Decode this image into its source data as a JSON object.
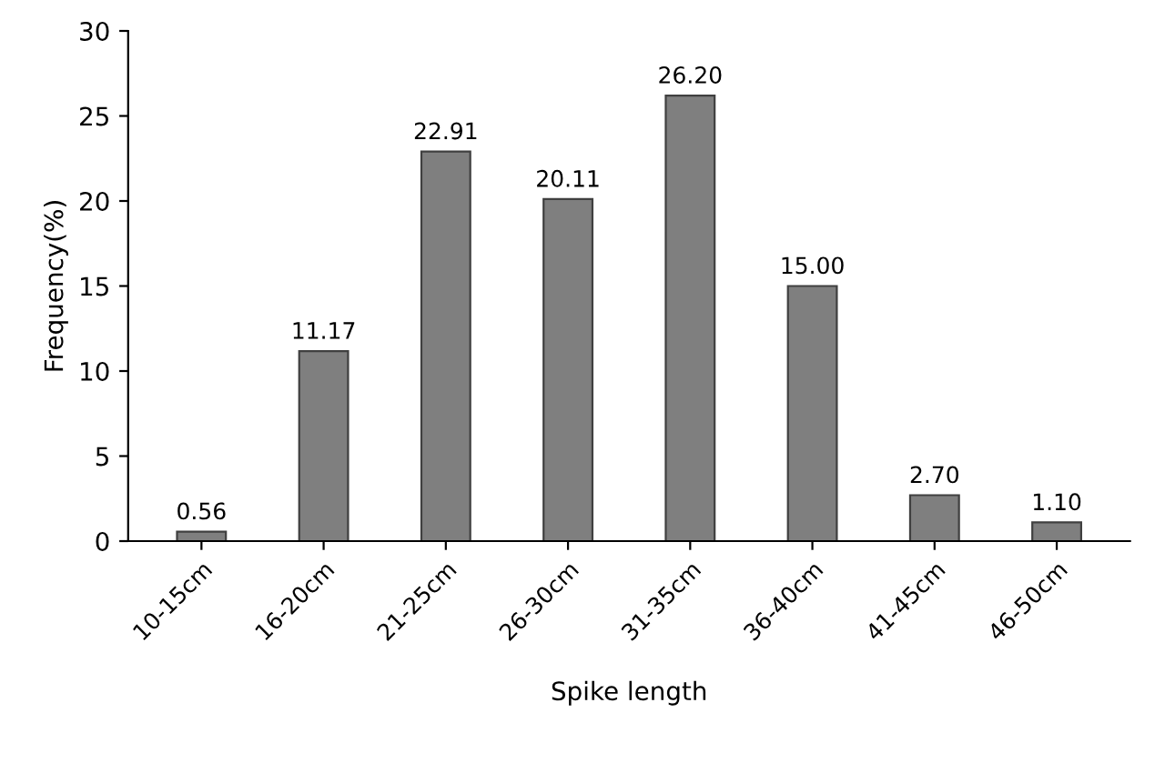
{
  "chart_data": {
    "type": "bar",
    "xlabel": "Spike length",
    "ylabel": "Frequency(%)",
    "categories": [
      "10-15cm",
      "16-20cm",
      "21-25cm",
      "26-30cm",
      "31-35cm",
      "36-40cm",
      "41-45cm",
      "46-50cm"
    ],
    "values": [
      0.56,
      11.17,
      22.91,
      20.11,
      26.2,
      15.0,
      2.7,
      1.1
    ],
    "value_labels": [
      "0.56",
      "11.17",
      "22.91",
      "20.11",
      "26.20",
      "15.00",
      "2.70",
      "1.10"
    ],
    "color": "#7f7f7f",
    "ylim": [
      0,
      30
    ],
    "yticks": [
      0,
      5,
      10,
      15,
      20,
      25,
      30
    ],
    "grid": false
  }
}
